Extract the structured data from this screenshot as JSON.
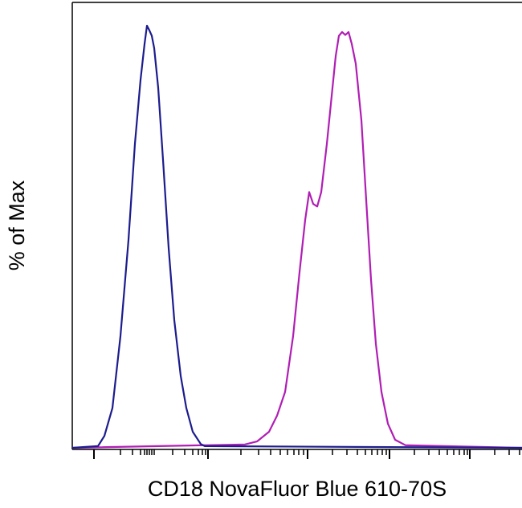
{
  "chart_data": {
    "type": "line",
    "xlabel": "CD18 NovaFluor Blue 610-70S",
    "ylabel": "% of Max",
    "xlim": [
      0,
      560
    ],
    "ylim": [
      0,
      105
    ],
    "xticks_major": [
      27,
      169,
      293,
      395,
      495
    ],
    "xticks_minor": [
      60,
      75,
      85,
      90,
      93,
      96,
      99,
      102,
      125,
      140,
      150,
      157,
      162,
      166,
      210,
      232,
      247,
      259,
      268,
      276,
      282,
      288,
      324,
      342,
      355,
      365,
      373,
      380,
      386,
      391,
      426,
      444,
      457,
      467,
      475,
      482,
      488,
      492,
      526,
      544,
      557
    ],
    "series": [
      {
        "color": "#b01eb4",
        "x": [
          0,
          215,
          230,
          245,
          255,
          265,
          275,
          283,
          290,
          295,
          300,
          305,
          310,
          317,
          323,
          328,
          332,
          336,
          340,
          344,
          348,
          353,
          360,
          366,
          372,
          378,
          385,
          393,
          402,
          415,
          560
        ],
        "values": [
          0,
          0.8,
          1.5,
          3.8,
          7.6,
          13.2,
          26.4,
          41.5,
          53.8,
          60.4,
          57.6,
          57.0,
          60.4,
          71.8,
          83.1,
          92.5,
          97.3,
          98.2,
          97.5,
          98.2,
          95.4,
          90.7,
          77.4,
          58.5,
          39.7,
          24.6,
          13.2,
          5.7,
          1.9,
          0.6,
          0
        ]
      },
      {
        "color": "#1c1c8e",
        "x": [
          0,
          32,
          40,
          50,
          60,
          70,
          78,
          85,
          90,
          93,
          96,
          99,
          102,
          107,
          113,
          120,
          127,
          135,
          142,
          150,
          160,
          165,
          560
        ],
        "values": [
          0,
          0.4,
          2.8,
          9.4,
          26.4,
          49.1,
          71.8,
          86.9,
          95.4,
          99.7,
          98.6,
          97.3,
          94.4,
          85.0,
          68.0,
          47.2,
          30.2,
          17.0,
          9.4,
          3.8,
          0.9,
          0.4,
          0
        ]
      }
    ]
  }
}
